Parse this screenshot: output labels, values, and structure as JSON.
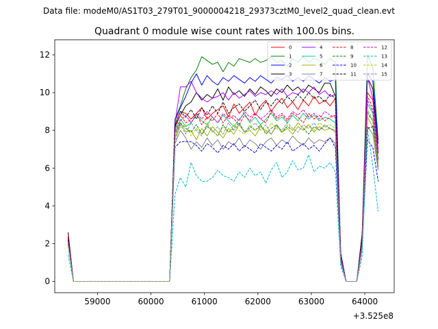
{
  "figure": {
    "suptitle": "Data file: modeM0/AS1T03_279T01_9000004218_29373cztM0_level2_quad_clean.evt"
  },
  "chart_data": {
    "type": "line",
    "title": "Quadrant 0 module wise count rates with 100.0s bins.",
    "xlabel": "",
    "ylabel": "",
    "x_offset_label": "+3.525e8",
    "xlim": [
      58200,
      64550
    ],
    "ylim": [
      -0.6,
      12.8
    ],
    "x_ticks": [
      59000,
      60000,
      61000,
      62000,
      63000,
      64000
    ],
    "x_tick_labels": [
      "59000",
      "60000",
      "61000",
      "62000",
      "63000",
      "64000"
    ],
    "y_ticks": [
      0,
      2,
      4,
      6,
      8,
      10,
      12
    ],
    "y_tick_labels": [
      "0",
      "2",
      "4",
      "6",
      "8",
      "10",
      "12"
    ],
    "grid": false,
    "legend_position": "top-right",
    "legend_columns": 4,
    "x": [
      58450,
      58550,
      58650,
      58750,
      58850,
      58950,
      59050,
      59150,
      59250,
      59350,
      59450,
      59550,
      59650,
      59750,
      59850,
      59950,
      60050,
      60150,
      60250,
      60350,
      60450,
      60550,
      60650,
      60750,
      60850,
      60950,
      61050,
      61150,
      61250,
      61350,
      61450,
      61550,
      61650,
      61750,
      61850,
      61950,
      62050,
      62150,
      62250,
      62350,
      62450,
      62550,
      62650,
      62750,
      62850,
      62950,
      63050,
      63150,
      63250,
      63350,
      63450,
      63550,
      63650,
      63750,
      63850,
      63950,
      64050,
      64150,
      64250
    ],
    "series": [
      {
        "name": "0",
        "color": "#ff0000",
        "dash": "solid",
        "values": [
          2.2,
          0,
          0,
          0,
          0,
          0,
          0,
          0,
          0,
          0,
          0,
          0,
          0,
          0,
          0,
          0,
          0,
          0,
          0,
          0,
          8.3,
          9.0,
          8.9,
          8.6,
          8.9,
          9.2,
          8.6,
          8.9,
          9.1,
          9.3,
          8.7,
          9.4,
          8.9,
          9.2,
          9.5,
          8.8,
          9.3,
          9.6,
          9.0,
          9.4,
          9.7,
          9.2,
          9.5,
          9.1,
          9.6,
          9.3,
          9.8,
          9.4,
          9.6,
          9.3,
          9.7,
          1.2,
          0,
          0,
          0,
          2.0,
          10.0,
          9.6,
          7.0
        ]
      },
      {
        "name": "1",
        "color": "#008000",
        "dash": "solid",
        "values": [
          2.4,
          0,
          0,
          0,
          0,
          0,
          0,
          0,
          0,
          0,
          0,
          0,
          0,
          0,
          0,
          0,
          0,
          0,
          0,
          0,
          8.6,
          9.3,
          10.2,
          10.8,
          11.2,
          11.9,
          11.7,
          11.5,
          11.6,
          11.1,
          11.6,
          11.4,
          11.8,
          11.7,
          11.6,
          11.8,
          11.6,
          11.7,
          11.9,
          11.6,
          11.7,
          11.4,
          11.8,
          11.6,
          11.9,
          11.6,
          11.8,
          11.7,
          11.5,
          11.8,
          11.6,
          1.4,
          0,
          0,
          0,
          2.3,
          12.0,
          11.3,
          7.5
        ]
      },
      {
        "name": "2",
        "color": "#0000ff",
        "dash": "solid",
        "values": [
          2.3,
          0,
          0,
          0,
          0,
          0,
          0,
          0,
          0,
          0,
          0,
          0,
          0,
          0,
          0,
          0,
          0,
          0,
          0,
          0,
          8.5,
          9.2,
          9.8,
          10.5,
          11.0,
          10.4,
          10.9,
          10.6,
          10.4,
          10.8,
          10.6,
          10.9,
          10.7,
          10.5,
          10.8,
          10.6,
          10.9,
          10.7,
          10.5,
          10.8,
          10.7,
          10.9,
          10.6,
          10.8,
          10.6,
          10.9,
          10.7,
          10.5,
          10.8,
          10.6,
          10.7,
          1.3,
          0,
          0,
          0,
          2.2,
          11.0,
          10.6,
          7.3
        ]
      },
      {
        "name": "3",
        "color": "#000000",
        "dash": "solid",
        "values": [
          2.6,
          0,
          0,
          0,
          0,
          0,
          0,
          0,
          0,
          0,
          0,
          0,
          0,
          0,
          0,
          0,
          0,
          0,
          0,
          0,
          8.2,
          8.8,
          9.3,
          9.5,
          10.0,
          9.6,
          9.9,
          9.7,
          10.2,
          9.6,
          10.3,
          9.9,
          10.1,
          9.8,
          10.2,
          9.9,
          10.3,
          10.1,
          9.8,
          10.2,
          10.0,
          10.4,
          10.1,
          10.3,
          10.0,
          10.4,
          10.2,
          10.0,
          10.5,
          10.5,
          9.8,
          1.5,
          0,
          0,
          0,
          2.5,
          10.8,
          10.2,
          6.8
        ]
      },
      {
        "name": "4",
        "color": "#aa00ff",
        "dash": "solid",
        "values": [
          2.4,
          0,
          0,
          0,
          0,
          0,
          0,
          0,
          0,
          0,
          0,
          0,
          0,
          0,
          0,
          0,
          0,
          0,
          0,
          0,
          8.4,
          10.3,
          10.3,
          10.6,
          10.0,
          9.7,
          9.5,
          9.7,
          9.8,
          10.0,
          9.6,
          10.0,
          9.7,
          9.9,
          10.1,
          9.8,
          10.0,
          9.9,
          10.1,
          9.9,
          10.2,
          9.8,
          10.0,
          9.9,
          10.2,
          10.0,
          10.3,
          9.9,
          10.1,
          9.8,
          9.9,
          1.4,
          0,
          0,
          0,
          2.2,
          10.8,
          9.7,
          6.8
        ]
      },
      {
        "name": "5",
        "color": "#00cc88",
        "dash": "solid",
        "values": [
          2.2,
          0,
          0,
          0,
          0,
          0,
          0,
          0,
          0,
          0,
          0,
          0,
          0,
          0,
          0,
          0,
          0,
          0,
          0,
          0,
          8.0,
          8.6,
          8.2,
          8.4,
          8.8,
          8.5,
          8.3,
          8.7,
          8.4,
          8.8,
          8.5,
          8.2,
          8.6,
          8.9,
          8.4,
          8.7,
          8.3,
          8.6,
          8.9,
          8.5,
          8.7,
          8.4,
          8.8,
          8.5,
          8.9,
          8.6,
          8.8,
          8.5,
          8.7,
          8.6,
          8.4,
          1.2,
          0,
          0,
          0,
          2.0,
          9.4,
          8.9,
          6.5
        ]
      },
      {
        "name": "6",
        "color": "#aaaa00",
        "dash": "solid",
        "values": [
          2.0,
          0,
          0,
          0,
          0,
          0,
          0,
          0,
          0,
          0,
          0,
          0,
          0,
          0,
          0,
          0,
          0,
          0,
          0,
          0,
          7.6,
          8.4,
          7.9,
          8.0,
          7.5,
          8.1,
          7.7,
          8.2,
          7.9,
          7.6,
          8.1,
          7.8,
          8.3,
          7.9,
          8.0,
          7.7,
          8.2,
          8.0,
          7.8,
          8.3,
          7.9,
          8.1,
          7.8,
          8.2,
          8.0,
          8.3,
          7.9,
          8.2,
          8.0,
          8.1,
          7.9,
          1.1,
          0,
          0,
          0,
          1.8,
          8.7,
          8.2,
          6.0
        ]
      },
      {
        "name": "7",
        "color": "#808080",
        "dash": "solid",
        "values": [
          2.1,
          0,
          0,
          0,
          0,
          0,
          0,
          0,
          0,
          0,
          0,
          0,
          0,
          0,
          0,
          0,
          0,
          0,
          0,
          0,
          7.3,
          8.0,
          7.6,
          7.0,
          7.4,
          7.1,
          7.6,
          7.2,
          7.5,
          7.0,
          7.4,
          7.2,
          7.6,
          7.1,
          7.5,
          7.3,
          7.0,
          7.4,
          7.6,
          7.2,
          7.5,
          7.3,
          7.7,
          7.4,
          7.2,
          7.6,
          7.3,
          7.5,
          7.4,
          7.6,
          7.3,
          1.1,
          0,
          0,
          0,
          1.9,
          8.2,
          7.8,
          5.9
        ]
      },
      {
        "name": "8",
        "color": "#ff0000",
        "dash": "dashed",
        "values": [
          2.3,
          0,
          0,
          0,
          0,
          0,
          0,
          0,
          0,
          0,
          0,
          0,
          0,
          0,
          0,
          0,
          0,
          0,
          0,
          0,
          8.1,
          8.8,
          8.4,
          8.6,
          8.9,
          8.3,
          8.7,
          8.5,
          8.9,
          8.4,
          8.8,
          8.6,
          8.3,
          8.8,
          8.5,
          8.9,
          8.6,
          8.4,
          9.0,
          8.6,
          8.8,
          8.5,
          8.9,
          8.7,
          8.4,
          8.9,
          8.6,
          8.8,
          8.5,
          8.7,
          8.8,
          1.3,
          0,
          0,
          0,
          2.1,
          9.8,
          9.2,
          6.7
        ]
      },
      {
        "name": "9",
        "color": "#008000",
        "dash": "dashed",
        "values": [
          2.0,
          0,
          0,
          0,
          0,
          0,
          0,
          0,
          0,
          0,
          0,
          0,
          0,
          0,
          0,
          0,
          0,
          0,
          0,
          0,
          7.8,
          8.4,
          8.1,
          7.9,
          8.3,
          7.8,
          8.2,
          8.0,
          7.7,
          8.3,
          7.9,
          8.1,
          8.4,
          7.9,
          8.2,
          8.0,
          8.3,
          7.8,
          8.1,
          8.3,
          7.9,
          8.2,
          8.0,
          8.4,
          8.1,
          7.8,
          8.2,
          8.0,
          8.3,
          8.1,
          8.0,
          1.2,
          0,
          0,
          0,
          1.9,
          8.9,
          8.5,
          6.1
        ]
      },
      {
        "name": "10",
        "color": "#0000ff",
        "dash": "dashed",
        "values": [
          1.9,
          0,
          0,
          0,
          0,
          0,
          0,
          0,
          0,
          0,
          0,
          0,
          0,
          0,
          0,
          0,
          0,
          0,
          0,
          0,
          7.1,
          7.4,
          7.4,
          7.4,
          7.2,
          6.9,
          7.3,
          7.1,
          6.8,
          7.2,
          7.0,
          7.3,
          6.9,
          7.2,
          7.0,
          6.8,
          7.3,
          7.1,
          6.9,
          7.2,
          7.0,
          7.4,
          6.9,
          7.1,
          7.3,
          7.0,
          7.2,
          6.9,
          7.3,
          7.6,
          7.1,
          1.0,
          0,
          0,
          0,
          1.7,
          7.5,
          7.1,
          5.3
        ]
      },
      {
        "name": "11",
        "color": "#000000",
        "dash": "dashed",
        "values": [
          2.2,
          0,
          0,
          0,
          0,
          0,
          0,
          0,
          0,
          0,
          0,
          0,
          0,
          0,
          0,
          0,
          0,
          0,
          0,
          0,
          8.3,
          9.0,
          8.7,
          9.1,
          8.6,
          9.2,
          8.8,
          9.3,
          8.9,
          9.5,
          8.9,
          9.2,
          9.4,
          9.0,
          9.3,
          9.6,
          9.1,
          9.5,
          9.3,
          9.7,
          9.4,
          9.8,
          9.5,
          9.9,
          9.6,
          10.0,
          9.7,
          9.8,
          9.5,
          9.9,
          9.7,
          1.3,
          0,
          0,
          0,
          2.1,
          8.1,
          8.2,
          6.5
        ]
      },
      {
        "name": "12",
        "color": "#cc00cc",
        "dash": "dashed",
        "values": [
          2.1,
          0,
          0,
          0,
          0,
          0,
          0,
          0,
          0,
          0,
          0,
          0,
          0,
          0,
          0,
          0,
          0,
          0,
          0,
          0,
          7.9,
          8.5,
          8.8,
          8.4,
          8.9,
          8.6,
          9.0,
          8.7,
          8.4,
          8.9,
          8.6,
          8.8,
          8.5,
          9.0,
          8.7,
          8.9,
          8.6,
          8.8,
          9.1,
          8.7,
          8.9,
          8.6,
          9.0,
          8.8,
          9.1,
          8.7,
          8.9,
          8.6,
          9.0,
          8.8,
          8.7,
          1.2,
          0,
          0,
          0,
          2.0,
          9.6,
          9.0,
          6.4
        ]
      },
      {
        "name": "13",
        "color": "#00bbcc",
        "dash": "dashed",
        "values": [
          1.4,
          0,
          0,
          0,
          0,
          0,
          0,
          0,
          0,
          0,
          0,
          0,
          0,
          0,
          0,
          0,
          0,
          0,
          0,
          0,
          4.6,
          5.5,
          5.0,
          6.3,
          5.6,
          5.3,
          5.3,
          5.5,
          5.9,
          5.6,
          5.5,
          5.3,
          5.8,
          5.5,
          6.0,
          5.6,
          5.8,
          5.2,
          5.9,
          6.3,
          5.5,
          5.8,
          6.4,
          5.9,
          6.0,
          6.7,
          5.8,
          6.1,
          6.0,
          6.3,
          5.8,
          0.8,
          0,
          0,
          0,
          1.3,
          8.1,
          6.1,
          3.7
        ]
      },
      {
        "name": "14",
        "color": "#aacc00",
        "dash": "dashed",
        "values": [
          1.9,
          0,
          0,
          0,
          0,
          0,
          0,
          0,
          0,
          0,
          0,
          0,
          0,
          0,
          0,
          0,
          0,
          0,
          0,
          0,
          7.6,
          8.2,
          8.3,
          7.7,
          8.1,
          7.8,
          8.4,
          8.0,
          7.7,
          8.2,
          7.9,
          8.3,
          8.0,
          7.8,
          8.3,
          8.0,
          8.2,
          7.9,
          8.4,
          8.1,
          7.9,
          8.3,
          8.0,
          8.4,
          8.1,
          8.3,
          8.0,
          8.4,
          8.2,
          8.3,
          8.1,
          1.1,
          0,
          0,
          0,
          1.8,
          9.1,
          8.6,
          6.2
        ]
      },
      {
        "name": "15",
        "color": "#7788bb",
        "dash": "dashed",
        "values": [
          2.0,
          0,
          0,
          0,
          0,
          0,
          0,
          0,
          0,
          0,
          0,
          0,
          0,
          0,
          0,
          0,
          0,
          0,
          0,
          0,
          7.4,
          8.3,
          7.8,
          8.4,
          8.0,
          7.7,
          8.3,
          7.9,
          8.2,
          7.8,
          8.4,
          8.0,
          8.3,
          7.9,
          8.1,
          8.4,
          8.0,
          8.3,
          7.8,
          8.2,
          8.0,
          8.4,
          8.1,
          7.9,
          8.3,
          8.1,
          8.4,
          8.0,
          8.2,
          8.1,
          8.0,
          1.1,
          0,
          0,
          0,
          1.9,
          9.0,
          8.5,
          6.3
        ]
      }
    ]
  }
}
